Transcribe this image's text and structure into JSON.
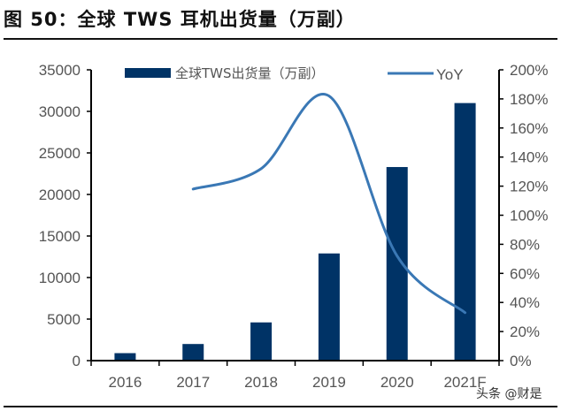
{
  "header": {
    "title": "图 50：全球 TWS 耳机出货量（万副）"
  },
  "watermark": "头条 @财是",
  "colors": {
    "bar": "#003366",
    "line": "#3A78B5",
    "axis": "#000000",
    "tick_text": "#555555"
  },
  "legend": {
    "bar_label": "全球TWS出货量（万副）",
    "line_label": "YoY"
  },
  "chart_data": {
    "type": "bar+line",
    "title": "图 50：全球 TWS 耳机出货量（万副）",
    "categories": [
      "2016",
      "2017",
      "2018",
      "2019",
      "2020",
      "2021F"
    ],
    "series": [
      {
        "name": "全球TWS出货量（万副）",
        "type": "bar",
        "axis": "left",
        "values": [
          900,
          2000,
          4600,
          12900,
          23300,
          31000
        ]
      },
      {
        "name": "YoY",
        "type": "line",
        "axis": "right",
        "values": [
          null,
          118,
          132,
          182,
          72,
          33
        ]
      }
    ],
    "left_axis": {
      "min": 0,
      "max": 35000,
      "ticks": [
        "0",
        "5000",
        "10000",
        "15000",
        "20000",
        "25000",
        "30000",
        "35000"
      ]
    },
    "right_axis": {
      "min": 0,
      "max": 200,
      "unit": "%",
      "ticks": [
        "0%",
        "20%",
        "40%",
        "60%",
        "80%",
        "100%",
        "120%",
        "140%",
        "160%",
        "180%",
        "200%"
      ]
    },
    "xlabel": "",
    "ylabel": "",
    "grid": false,
    "legend_position": "top"
  }
}
